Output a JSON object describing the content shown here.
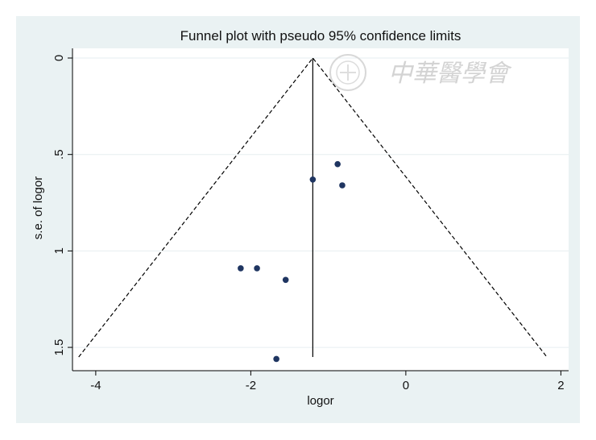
{
  "chart_data": {
    "type": "scatter",
    "title": "Funnel plot with pseudo 95% confidence limits",
    "xlabel": "logor",
    "ylabel": "s.e. of logor",
    "xlim": [
      -4.3,
      2.1
    ],
    "ylim": [
      0,
      1.6
    ],
    "y_reversed": true,
    "x_ticks": [
      -4,
      -2,
      0,
      2
    ],
    "x_tick_labels": [
      "-4",
      "-2",
      "0",
      "2"
    ],
    "y_ticks": [
      0,
      0.5,
      1,
      1.5
    ],
    "y_tick_labels": [
      "0",
      ".5",
      "1",
      "1.5"
    ],
    "y_tick_label_rotation": "vertical",
    "grid": "horizontal",
    "legend": "none",
    "pooled_estimate": -1.2,
    "funnel_limits": {
      "apex": [
        -1.2,
        0
      ],
      "left_base": [
        -4.22,
        1.55
      ],
      "right_base": [
        1.82,
        1.55
      ],
      "style": "dashed"
    },
    "points": [
      {
        "x": -0.88,
        "y": 0.55
      },
      {
        "x": -1.2,
        "y": 0.63
      },
      {
        "x": -0.82,
        "y": 0.66
      },
      {
        "x": -2.13,
        "y": 1.09
      },
      {
        "x": -1.92,
        "y": 1.09
      },
      {
        "x": -1.55,
        "y": 1.15
      },
      {
        "x": -1.67,
        "y": 1.56
      }
    ],
    "colors": {
      "outer_background": "#eaf2f3",
      "plot_background": "#ffffff",
      "gridline": "#e6eef0",
      "point": "#1f3561",
      "line": "#000000"
    }
  },
  "watermark": {
    "text": "中華醫學會",
    "logo_icon": "seal-icon"
  }
}
